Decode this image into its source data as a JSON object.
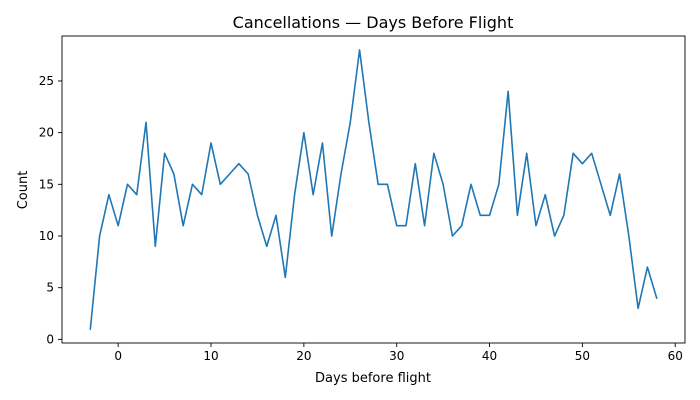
{
  "chart_data": {
    "type": "line",
    "title": "Cancellations — Days Before Flight",
    "xlabel": "Days before flight",
    "ylabel": "Count",
    "xlim": [
      -6.05,
      61.05
    ],
    "ylim": [
      -0.35,
      29.35
    ],
    "xticks": [
      0,
      10,
      20,
      30,
      40,
      50,
      60
    ],
    "yticks": [
      0,
      5,
      10,
      15,
      20,
      25
    ],
    "grid": false,
    "series": [
      {
        "color": "#1f77b4",
        "x": [
          -3,
          -2,
          -1,
          0,
          1,
          2,
          3,
          4,
          5,
          6,
          7,
          8,
          9,
          10,
          11,
          12,
          13,
          14,
          15,
          16,
          17,
          18,
          19,
          20,
          21,
          22,
          23,
          24,
          25,
          26,
          27,
          28,
          29,
          30,
          31,
          32,
          33,
          34,
          35,
          36,
          37,
          38,
          39,
          40,
          41,
          42,
          43,
          44,
          45,
          46,
          47,
          48,
          49,
          50,
          51,
          52,
          53,
          54,
          55,
          56,
          57,
          58
        ],
        "y": [
          1,
          10,
          14,
          11,
          15,
          14,
          21,
          9,
          18,
          16,
          11,
          15,
          14,
          19,
          15,
          16,
          17,
          16,
          12,
          9,
          12,
          6,
          14,
          20,
          14,
          19,
          10,
          16,
          21,
          28,
          21,
          15,
          15,
          11,
          11,
          17,
          11,
          18,
          15,
          10,
          11,
          15,
          12,
          12,
          15,
          24,
          12,
          18,
          11,
          14,
          10,
          12,
          18,
          17,
          18,
          15,
          12,
          16,
          10,
          3,
          7,
          4
        ]
      }
    ]
  }
}
